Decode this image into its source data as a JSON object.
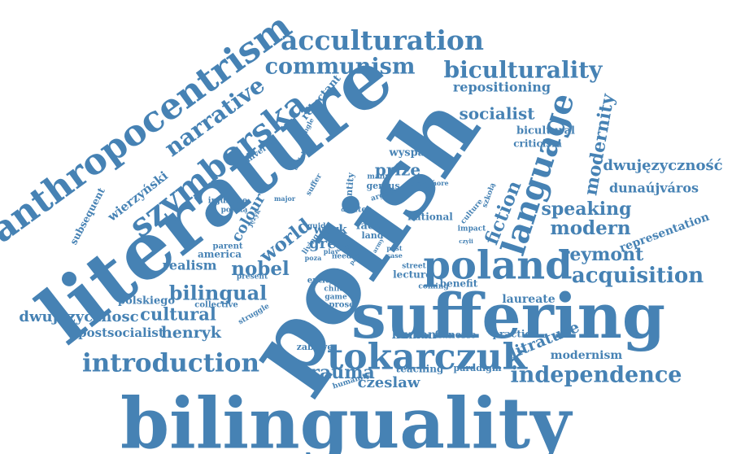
{
  "style": {
    "word_color": "#4682b4",
    "background": "#ffffff"
  },
  "words": [
    "bilinguality",
    "literature",
    "polish",
    "suffering",
    "anthropocentrism",
    "tokarczuk",
    "szymborska",
    "poland",
    "language",
    "acculturation",
    "communism",
    "biculturality",
    "narrative",
    "introduction",
    "bilingual",
    "independence",
    "acquisition",
    "modern",
    "nobel",
    "reymont",
    "fiction",
    "modernity",
    "speaking",
    "trauma",
    "cultural",
    "henryk",
    "dwujezycznosc",
    "dwujęzyczność",
    "dunaújváros",
    "socialist",
    "repositioning",
    "prize",
    "czeslaw",
    "litrature",
    "realism",
    "world",
    "grey",
    "colour",
    "postsocialist",
    "laureate",
    "representation",
    "modernism",
    "wierzyński",
    "bicultural",
    "criticism",
    "reluctant",
    "subsequent",
    "polskiego",
    "wyspach",
    "human",
    "teaching",
    "paradigm",
    "national",
    "lecture",
    "flânerie",
    "practice",
    "benefit",
    "america",
    "work",
    "face",
    "land",
    "humanity",
    "zabawę",
    "entity",
    "child",
    "game",
    "prose",
    "collective",
    "struggle",
    "present",
    "injustice",
    "polską",
    "parent",
    "universal",
    "article",
    "single",
    "suffer",
    "major",
    "język",
    "identity",
    "many",
    "genius",
    "argue",
    "uczyć",
    "more",
    "writer",
    "culture",
    "szkołą",
    "post",
    "case",
    "street",
    "coming",
    "impact",
    "czyli",
    "living",
    "play",
    "need",
    "poza",
    "path",
    "guide",
    "duty",
    "fate",
    "army"
  ]
}
